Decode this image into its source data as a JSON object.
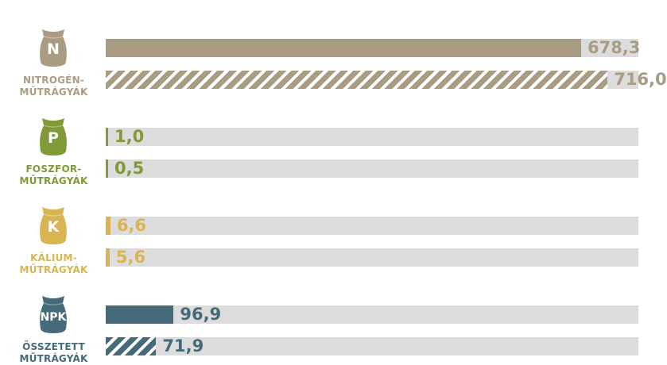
{
  "chart_data": {
    "type": "bar",
    "orientation": "horizontal",
    "xlim": [
      0,
      760
    ],
    "groups": [
      {
        "letter": "N",
        "label": "NITROGÉN-\nMŰTRÁGYÁK",
        "color": "#aa9b83",
        "values": [
          678.3,
          716.0
        ],
        "value_labels": [
          "678,3",
          "716,0"
        ],
        "hatched": [
          false,
          true
        ]
      },
      {
        "letter": "P",
        "label": "FOSZFOR-\nMŰTRÁGYÁK",
        "color": "#7f9a37",
        "values": [
          1.0,
          0.5
        ],
        "value_labels": [
          "1,0",
          "0,5"
        ],
        "hatched": [
          false,
          false
        ]
      },
      {
        "letter": "K",
        "label": "KÁLIUM-\nMŰTRÁGYÁK",
        "color": "#d8b552",
        "values": [
          6.6,
          5.6
        ],
        "value_labels": [
          "6,6",
          "5,6"
        ],
        "hatched": [
          false,
          false
        ]
      },
      {
        "letter": "NPK",
        "label": "ÖSSZETETT\nMŰTRÁGYÁK",
        "color": "#456b7b",
        "values": [
          96.9,
          71.9
        ],
        "value_labels": [
          "96,9",
          "71,9"
        ],
        "hatched": [
          false,
          true
        ]
      }
    ]
  }
}
